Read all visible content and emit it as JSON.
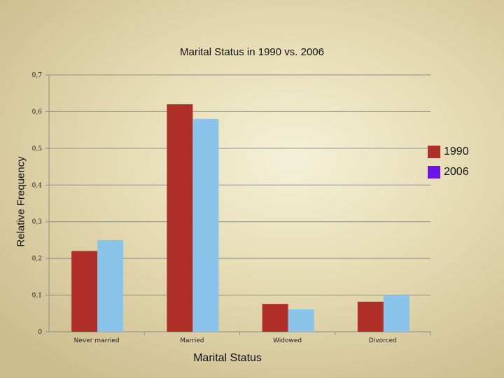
{
  "chart_data": {
    "type": "bar",
    "title": "Marital Status in 1990 vs. 2006",
    "xlabel": "Marital Status",
    "ylabel": "Relative Frequency",
    "categories": [
      "Never married",
      "Married",
      "Widowed",
      "Divorced"
    ],
    "series": [
      {
        "name": "1990",
        "color": "#b02f28",
        "values": [
          0.22,
          0.62,
          0.076,
          0.082
        ]
      },
      {
        "name": "2006",
        "color": "#8ac4ea",
        "values": [
          0.25,
          0.58,
          0.061,
          0.1
        ]
      }
    ],
    "legend_swatch_colors": [
      "#b02f28",
      "#6a16e6"
    ],
    "ylim": [
      0,
      0.7
    ],
    "yticks": [
      "0",
      "0,1",
      "0,2",
      "0,3",
      "0,4",
      "0,5",
      "0,6",
      "0,7"
    ],
    "grid": true,
    "legend_position": "right"
  }
}
